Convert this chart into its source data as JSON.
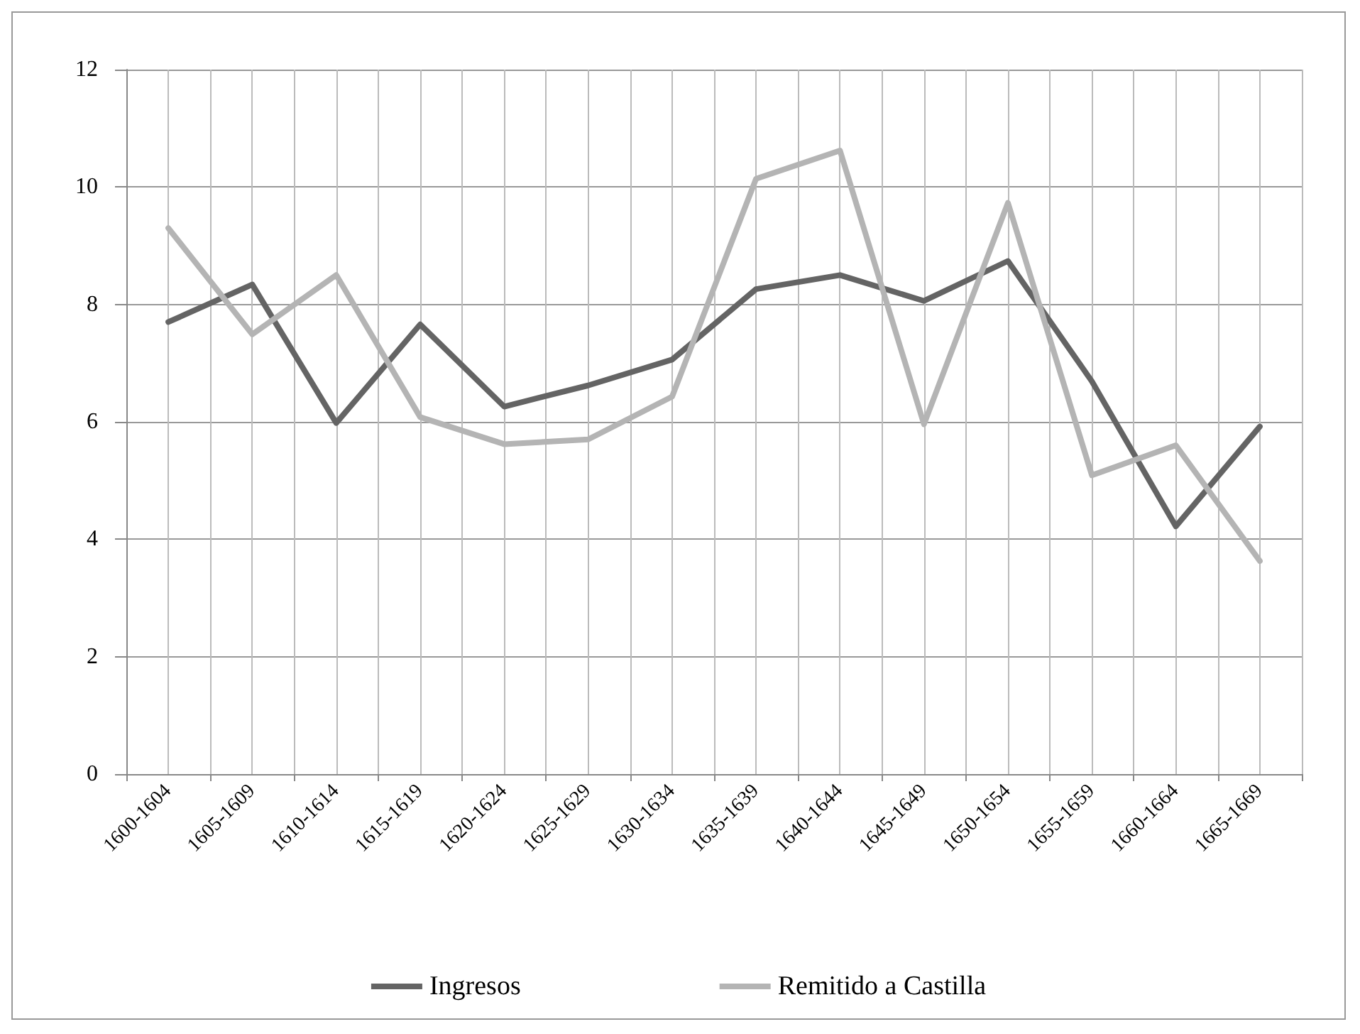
{
  "chart_data": {
    "type": "line",
    "categories": [
      "1600-1604",
      "1605-1609",
      "1610-1614",
      "1615-1619",
      "1620-1624",
      "1625-1629",
      "1630-1634",
      "1635-1639",
      "1640-1644",
      "1645-1649",
      "1650-1654",
      "1655-1659",
      "1660-1664",
      "1665-1669"
    ],
    "series": [
      {
        "name": "Ingresos",
        "color": "#646464",
        "values": [
          7.7,
          8.34,
          5.98,
          7.66,
          6.26,
          6.62,
          7.06,
          8.26,
          8.5,
          8.06,
          8.74,
          6.69,
          4.22,
          5.92
        ]
      },
      {
        "name": "Remitido a Castilla",
        "color": "#b4b4b4",
        "values": [
          9.3,
          7.49,
          8.5,
          6.08,
          5.62,
          5.7,
          6.43,
          10.14,
          10.62,
          5.96,
          9.73,
          5.09,
          5.6,
          3.63
        ]
      }
    ],
    "ylim": [
      0,
      12
    ],
    "yticks": [
      0,
      2,
      4,
      6,
      8,
      10,
      12
    ],
    "grid": true,
    "legend": "bottom",
    "marker": "none",
    "line_style": "solid"
  }
}
